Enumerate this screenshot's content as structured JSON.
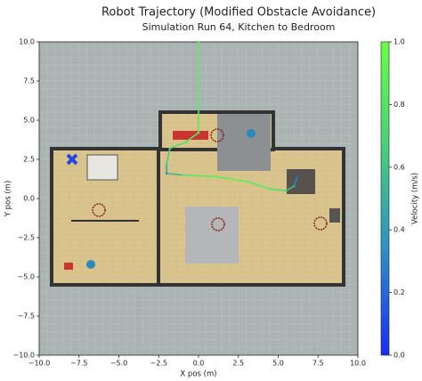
{
  "chart_data": {
    "type": "line",
    "title": "Robot Trajectory (Modified Obstacle Avoidance)",
    "subtitle": "Simulation Run 64, Kitchen to Bedroom",
    "x_label": "X pos (m)",
    "y_label": "Y pos (m)",
    "x": [
      0,
      0,
      0,
      0,
      -0.8,
      -1.8,
      -2.0,
      -2.0,
      -1.0,
      1.0,
      3.0,
      4.5,
      5.5,
      6.0,
      6.2
    ],
    "y": [
      10,
      8,
      6,
      4.2,
      3.6,
      3.2,
      2.2,
      1.6,
      1.5,
      1.4,
      1.1,
      0.6,
      0.5,
      0.8,
      1.4
    ],
    "velocity": [
      0.9,
      0.9,
      0.9,
      0.85,
      0.8,
      0.75,
      0.6,
      0.3,
      0.8,
      0.9,
      0.9,
      0.85,
      0.7,
      0.4,
      0.2
    ],
    "xlim": [
      -10,
      10
    ],
    "ylim": [
      -10,
      10
    ],
    "xticks": [
      {
        "value": -10,
        "label": "−10.0"
      },
      {
        "value": -7.5,
        "label": "−7.5"
      },
      {
        "value": -5,
        "label": "−5.0"
      },
      {
        "value": -2.5,
        "label": "−2.5"
      },
      {
        "value": 0,
        "label": "0.0"
      },
      {
        "value": 2.5,
        "label": "2.5"
      },
      {
        "value": 5,
        "label": "5.0"
      },
      {
        "value": 7.5,
        "label": "7.5"
      },
      {
        "value": 10,
        "label": "10.0"
      }
    ],
    "yticks": [
      {
        "value": -10,
        "label": "−10.0"
      },
      {
        "value": -7.5,
        "label": "−7.5"
      },
      {
        "value": -5,
        "label": "−5.0"
      },
      {
        "value": -2.5,
        "label": "−2.5"
      },
      {
        "value": 0,
        "label": "0.0"
      },
      {
        "value": 2.5,
        "label": "2.5"
      },
      {
        "value": 5,
        "label": "5.0"
      },
      {
        "value": 7.5,
        "label": "7.5"
      },
      {
        "value": 10,
        "label": "10.0"
      }
    ],
    "colorbar_label": "Velocity (m/s)",
    "colorbar_lim": [
      0,
      1
    ],
    "colorbar_ticks": [
      {
        "value": 0,
        "label": "0.0"
      },
      0.2,
      0.4,
      0.6,
      0.8,
      {
        "value": 1,
        "label": "1.0"
      }
    ],
    "colormap": [
      "#1a2cf5",
      "#2e8fc6",
      "#49d07a",
      "#66ff44"
    ]
  }
}
